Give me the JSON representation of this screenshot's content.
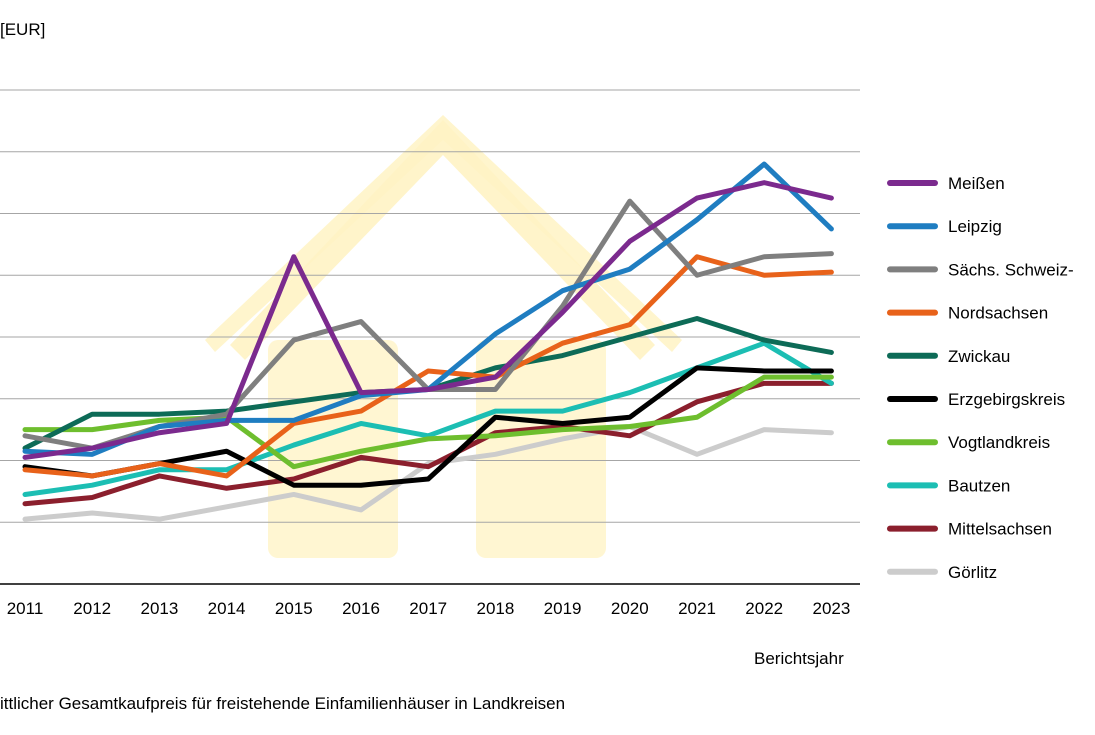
{
  "chart_data": {
    "type": "line",
    "unit_label": "[EUR]",
    "xlabel": "Berichtsjahr",
    "caption": "ittlicher Gesamtkaufpreis für freistehende Einfamilienhäuser in Landkreisen",
    "x": [
      "2011",
      "2012",
      "2013",
      "2014",
      "2015",
      "2016",
      "2017",
      "2018",
      "2019",
      "2020",
      "2021",
      "2022",
      "2023"
    ],
    "ylim": [
      20,
      100
    ],
    "grid": true,
    "legend_position": "right",
    "watermark": "house-icon",
    "series": [
      {
        "name": "Meißen",
        "color": "#7B2A8E",
        "values": [
          40.5,
          42,
          44.5,
          46,
          73,
          51,
          51.5,
          53.5,
          64,
          75.5,
          82.5,
          85,
          82.5
        ]
      },
      {
        "name": "Leipzig",
        "color": "#1F7DC1",
        "values": [
          41.5,
          41,
          45.5,
          46.5,
          46.5,
          50.5,
          51.5,
          60.5,
          67.5,
          71,
          79,
          88,
          77.5
        ]
      },
      {
        "name": "Sächs. Schweiz-",
        "color": "#7F7F7F",
        "values": [
          44,
          42,
          45.5,
          47.5,
          59.5,
          62.5,
          51.5,
          51.5,
          65,
          82,
          70,
          73,
          73.5
        ]
      },
      {
        "name": "Nordsachsen",
        "color": "#E8621A",
        "values": [
          38.5,
          37.5,
          39.5,
          37.5,
          46,
          48,
          54.5,
          53.5,
          59,
          62,
          73,
          70,
          70.5
        ]
      },
      {
        "name": "Zwickau",
        "color": "#0D6B57",
        "values": [
          42,
          47.5,
          47.5,
          48,
          49.5,
          51,
          51.5,
          55,
          57,
          60,
          63,
          59.5,
          57.5
        ]
      },
      {
        "name": "Erzgebirgskreis",
        "color": "#000000",
        "values": [
          39,
          37.5,
          39.5,
          41.5,
          36,
          36,
          37,
          47,
          46,
          47,
          55,
          54.5,
          54.5
        ]
      },
      {
        "name": "Vogtlandkreis",
        "color": "#6EBE2E",
        "values": [
          45,
          45,
          46.5,
          47,
          39,
          41.5,
          43.5,
          44,
          45,
          45.5,
          47,
          53.5,
          53.5
        ]
      },
      {
        "name": "Bautzen",
        "color": "#1CBEB3",
        "values": [
          34.5,
          36,
          38.5,
          38.5,
          42.5,
          46,
          44,
          48,
          48,
          51,
          55,
          59,
          52.5
        ]
      },
      {
        "name": "Mittelsachsen",
        "color": "#8B1F2D",
        "values": [
          33,
          34,
          37.5,
          35.5,
          37,
          40.5,
          39,
          44.5,
          45.5,
          44,
          49.5,
          52.5,
          52.5
        ]
      },
      {
        "name": "Görlitz",
        "color": "#CCCCCC",
        "values": [
          30.5,
          31.5,
          30.5,
          32.5,
          34.5,
          32,
          39.5,
          41,
          43.5,
          45.5,
          41,
          45,
          44.5
        ]
      }
    ]
  }
}
